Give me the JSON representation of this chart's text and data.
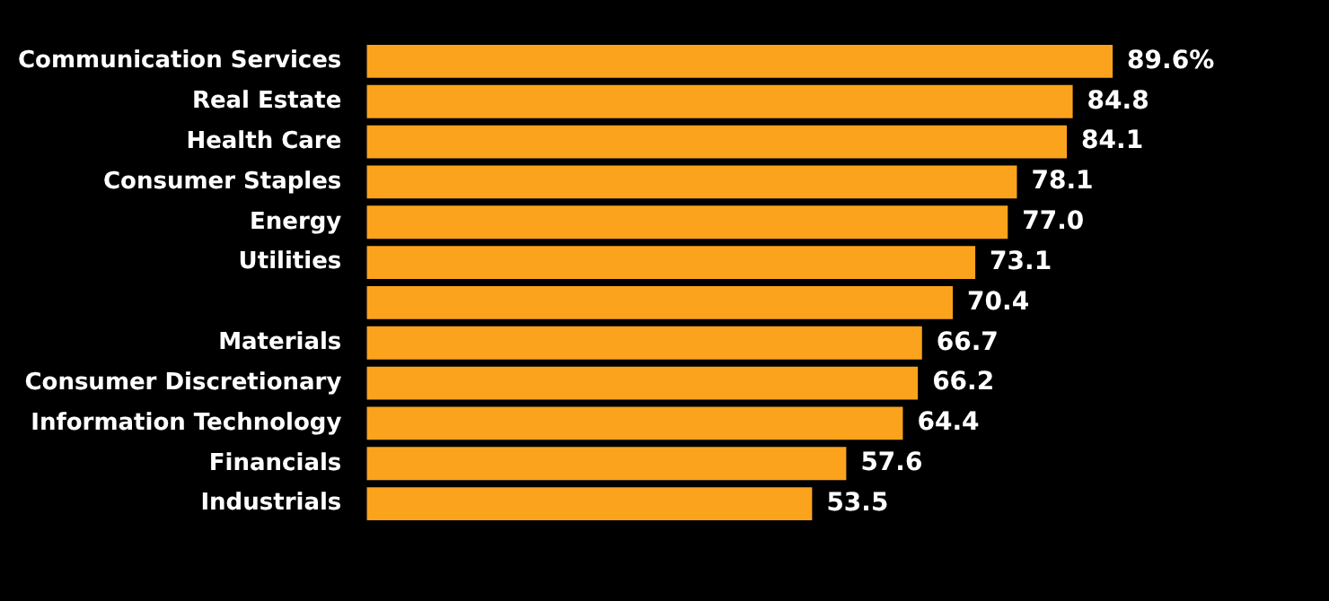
{
  "chart_data": {
    "type": "bar",
    "orientation": "horizontal",
    "categories": [
      "Communication Services",
      "Real Estate",
      "Health Care",
      "Consumer Staples",
      "Energy",
      "Utilities",
      null,
      "Materials",
      "Consumer Discretionary",
      "Information Technology",
      "Financials",
      "Industrials"
    ],
    "values": [
      89.6,
      84.8,
      84.1,
      78.1,
      77.0,
      73.1,
      70.4,
      66.7,
      66.2,
      64.4,
      57.6,
      53.5
    ],
    "value_labels": [
      "89.6%",
      "84.8",
      "84.1",
      "78.1",
      "77.0",
      "73.1",
      "70.4",
      "66.7",
      "66.2",
      "64.4",
      "57.6",
      "53.5"
    ],
    "color": "#fba31c"
  }
}
